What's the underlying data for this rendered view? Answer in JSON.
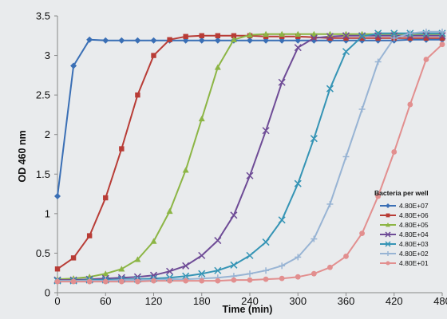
{
  "chart_data": {
    "type": "line",
    "xlabel": "Time (min)",
    "ylabel": "OD 460 nm",
    "xlim": [
      0,
      480
    ],
    "ylim": [
      0,
      3.5
    ],
    "xticks": [
      0,
      60,
      120,
      180,
      240,
      300,
      360,
      420,
      480
    ],
    "yticks": [
      0,
      0.5,
      1,
      1.5,
      2,
      2.5,
      3,
      3.5
    ],
    "grid": false,
    "legend_title": "Bacteria per well",
    "legend_position": "bottom-right",
    "series": [
      {
        "name": "4.80E+07",
        "color": "#3a6fb5",
        "marker": "diamond",
        "x": [
          0,
          20,
          40,
          60,
          80,
          100,
          120,
          140,
          160,
          180,
          200,
          220,
          240,
          260,
          280,
          300,
          320,
          340,
          360,
          380,
          400,
          420,
          440,
          460,
          480
        ],
        "y": [
          1.22,
          2.87,
          3.2,
          3.19,
          3.19,
          3.19,
          3.19,
          3.19,
          3.19,
          3.19,
          3.19,
          3.19,
          3.19,
          3.19,
          3.19,
          3.19,
          3.19,
          3.19,
          3.19,
          3.19,
          3.19,
          3.19,
          3.2,
          3.2,
          3.2
        ]
      },
      {
        "name": "4.80E+06",
        "color": "#b83c36",
        "marker": "square",
        "x": [
          0,
          20,
          40,
          60,
          80,
          100,
          120,
          140,
          160,
          180,
          200,
          220,
          240,
          260,
          280,
          300,
          320,
          340,
          360,
          380,
          400,
          420,
          440,
          460,
          480
        ],
        "y": [
          0.3,
          0.44,
          0.72,
          1.2,
          1.82,
          2.5,
          3.0,
          3.2,
          3.24,
          3.25,
          3.25,
          3.25,
          3.25,
          3.24,
          3.24,
          3.24,
          3.23,
          3.22,
          3.22,
          3.22,
          3.22,
          3.22,
          3.22,
          3.22,
          3.22
        ]
      },
      {
        "name": "4.80E+05",
        "color": "#8cb545",
        "marker": "triangle",
        "x": [
          0,
          20,
          40,
          60,
          80,
          100,
          120,
          140,
          160,
          180,
          200,
          220,
          240,
          260,
          280,
          300,
          320,
          340,
          360,
          380,
          400,
          420,
          440,
          460,
          480
        ],
        "y": [
          0.17,
          0.18,
          0.2,
          0.24,
          0.3,
          0.42,
          0.65,
          1.03,
          1.55,
          2.2,
          2.85,
          3.2,
          3.26,
          3.27,
          3.27,
          3.27,
          3.27,
          3.27,
          3.27,
          3.27,
          3.27,
          3.27,
          3.27,
          3.27,
          3.27
        ]
      },
      {
        "name": "4.80E+04",
        "color": "#6e4b96",
        "marker": "x",
        "x": [
          0,
          20,
          40,
          60,
          80,
          100,
          120,
          140,
          160,
          180,
          200,
          220,
          240,
          260,
          280,
          300,
          320,
          340,
          360,
          380,
          400,
          420,
          440,
          460,
          480
        ],
        "y": [
          0.16,
          0.16,
          0.17,
          0.18,
          0.19,
          0.2,
          0.22,
          0.27,
          0.34,
          0.47,
          0.66,
          0.98,
          1.48,
          2.05,
          2.66,
          3.1,
          3.22,
          3.24,
          3.25,
          3.25,
          3.25,
          3.25,
          3.25,
          3.25,
          3.25
        ]
      },
      {
        "name": "4.80E+03",
        "color": "#3594b5",
        "marker": "x",
        "x": [
          0,
          20,
          40,
          60,
          80,
          100,
          120,
          140,
          160,
          180,
          200,
          220,
          240,
          260,
          280,
          300,
          320,
          340,
          360,
          380,
          400,
          420,
          440,
          460,
          480
        ],
        "y": [
          0.15,
          0.15,
          0.16,
          0.16,
          0.17,
          0.17,
          0.18,
          0.19,
          0.21,
          0.24,
          0.28,
          0.35,
          0.47,
          0.64,
          0.92,
          1.38,
          1.95,
          2.58,
          3.05,
          3.24,
          3.28,
          3.28,
          3.28,
          3.28,
          3.28
        ]
      },
      {
        "name": "4.80E+02",
        "color": "#98b4d4",
        "marker": "plus",
        "x": [
          0,
          20,
          40,
          60,
          80,
          100,
          120,
          140,
          160,
          180,
          200,
          220,
          240,
          260,
          280,
          300,
          320,
          340,
          360,
          380,
          400,
          420,
          440,
          460,
          480
        ],
        "y": [
          0.15,
          0.15,
          0.15,
          0.15,
          0.16,
          0.16,
          0.16,
          0.17,
          0.17,
          0.18,
          0.19,
          0.21,
          0.24,
          0.28,
          0.34,
          0.45,
          0.68,
          1.12,
          1.72,
          2.32,
          2.92,
          3.22,
          3.28,
          3.3,
          3.3
        ]
      },
      {
        "name": "4.80E+01",
        "color": "#e28f8f",
        "marker": "circle",
        "x": [
          0,
          20,
          40,
          60,
          80,
          100,
          120,
          140,
          160,
          180,
          200,
          220,
          240,
          260,
          280,
          300,
          320,
          340,
          360,
          380,
          400,
          420,
          440,
          460,
          480
        ],
        "y": [
          0.14,
          0.14,
          0.14,
          0.14,
          0.14,
          0.14,
          0.15,
          0.15,
          0.15,
          0.15,
          0.15,
          0.16,
          0.16,
          0.17,
          0.18,
          0.2,
          0.24,
          0.32,
          0.46,
          0.75,
          1.22,
          1.78,
          2.38,
          2.95,
          3.14
        ]
      }
    ]
  }
}
